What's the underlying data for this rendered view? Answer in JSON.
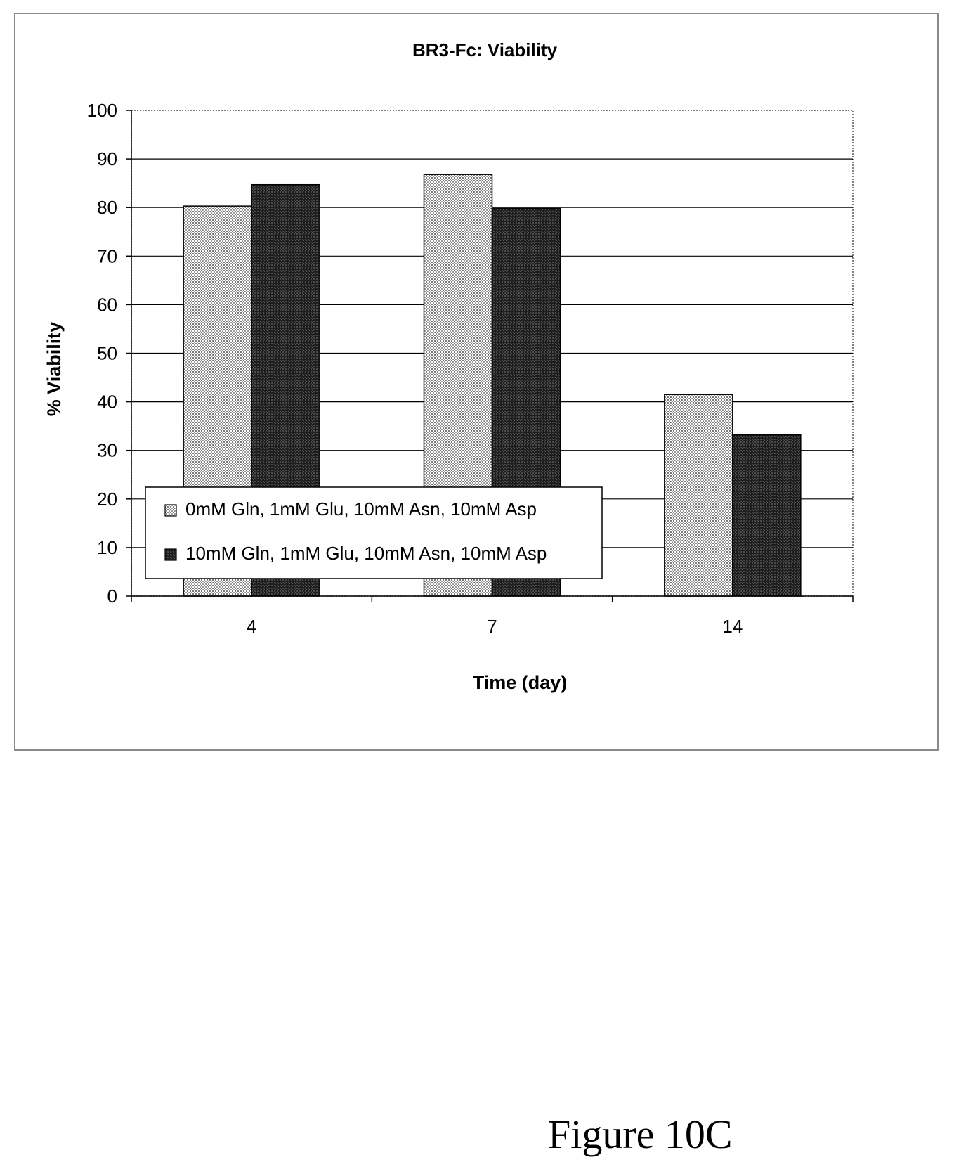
{
  "chart_data": {
    "type": "bar",
    "title": "BR3-Fc: Viability",
    "xlabel": "Time (day)",
    "ylabel": "% Viability",
    "categories": [
      "4",
      "7",
      "14"
    ],
    "ylim": [
      0,
      100
    ],
    "yticks": [
      0,
      10,
      20,
      30,
      40,
      50,
      60,
      70,
      80,
      90,
      100
    ],
    "grid": true,
    "legend_position": "lower-left",
    "series": [
      {
        "name": "0mM Gln, 1mM Glu, 10mM Asn, 10mM Asp",
        "values": [
          80.3,
          86.8,
          41.5
        ],
        "pattern": "light-stipple",
        "color": "#dcdcdc"
      },
      {
        "name": "10mM Gln, 1mM Glu, 10mM Asn, 10mM Asp",
        "values": [
          84.7,
          79.8,
          33.2
        ],
        "pattern": "dark-stipple",
        "color": "#2a2a2a"
      }
    ]
  },
  "caption": "Figure 10C"
}
